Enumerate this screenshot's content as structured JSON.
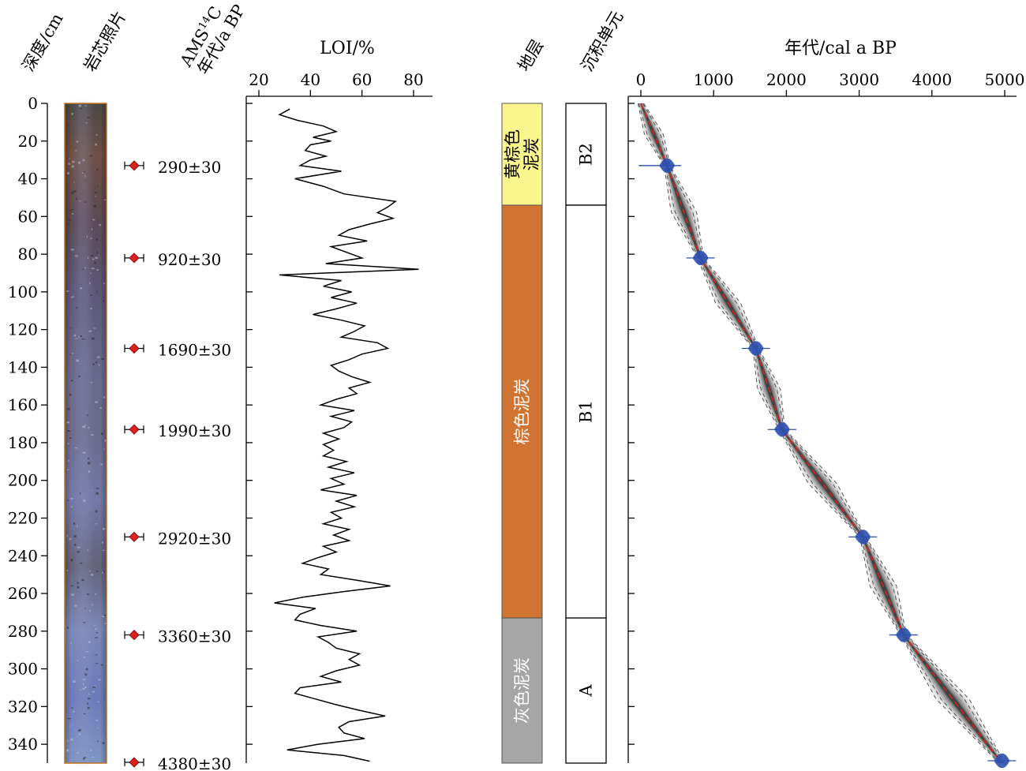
{
  "chart_data": {
    "type": "stratigraphic-column",
    "depth_axis": {
      "label": "深度/cm",
      "range": [
        0,
        350
      ],
      "ticks": [
        0,
        20,
        40,
        60,
        80,
        100,
        120,
        140,
        160,
        180,
        200,
        220,
        240,
        260,
        280,
        300,
        320,
        340
      ]
    },
    "core_photo": {
      "label": "岩芯照片"
    },
    "ams_dates": {
      "label": "AMS ¹⁴C\n年代/a BP",
      "label_line1": "AMS",
      "label_sup": "14",
      "label_line1_end": "C",
      "label_line2": "年代/a BP",
      "points": [
        {
          "depth": 33,
          "label": "290±30"
        },
        {
          "depth": 82,
          "label": "920±30"
        },
        {
          "depth": 130,
          "label": "1690±30"
        },
        {
          "depth": 173,
          "label": "1990±30"
        },
        {
          "depth": 230,
          "label": "2920±30"
        },
        {
          "depth": 282,
          "label": "3360±30"
        },
        {
          "depth": 350,
          "label": "4380±30"
        }
      ],
      "marker_color": "#e02020"
    },
    "loi": {
      "type": "line",
      "label": "LOI/%",
      "xlim": [
        20,
        80
      ],
      "ticks": [
        20,
        40,
        60,
        80
      ],
      "depth": [
        3,
        6,
        9,
        12,
        15,
        18,
        20,
        22,
        25,
        28,
        30,
        33,
        36,
        40,
        44,
        48,
        52,
        55,
        58,
        61,
        64,
        67,
        70,
        73,
        76,
        79,
        82,
        85,
        88,
        91,
        94,
        97,
        100,
        103,
        106,
        109,
        112,
        115,
        118,
        121,
        124,
        127,
        130,
        133,
        136,
        139,
        142,
        145,
        148,
        151,
        154,
        157,
        160,
        163,
        166,
        169,
        172,
        175,
        178,
        181,
        184,
        187,
        190,
        193,
        196,
        199,
        202,
        205,
        208,
        211,
        214,
        217,
        220,
        223,
        226,
        229,
        232,
        235,
        238,
        241,
        244,
        247,
        250,
        253,
        256,
        259,
        262,
        265,
        268,
        271,
        274,
        277,
        280,
        283,
        286,
        289,
        292,
        295,
        298,
        301,
        304,
        307,
        310,
        313,
        316,
        319,
        322,
        325,
        328,
        331,
        334,
        337,
        340,
        343,
        346,
        349
      ],
      "values": [
        32,
        28,
        35,
        45,
        50,
        41,
        48,
        40,
        38,
        46,
        40,
        36,
        52,
        34,
        45,
        53,
        73,
        70,
        66,
        72,
        63,
        55,
        51,
        62,
        48,
        54,
        60,
        46,
        82,
        28,
        52,
        45,
        56,
        48,
        58,
        50,
        41,
        52,
        61,
        57,
        52,
        66,
        70,
        60,
        55,
        48,
        51,
        56,
        63,
        55,
        58,
        50,
        44,
        57,
        48,
        56,
        53,
        45,
        51,
        45,
        49,
        45,
        54,
        47,
        57,
        48,
        53,
        44,
        58,
        50,
        57,
        48,
        52,
        45,
        55,
        49,
        55,
        45,
        50,
        43,
        37,
        47,
        44,
        58,
        71,
        53,
        37,
        26,
        42,
        36,
        34,
        44,
        58,
        43,
        47,
        50,
        59,
        55,
        59,
        50,
        44,
        52,
        36,
        34,
        42,
        50,
        59,
        69,
        55,
        51,
        53,
        61,
        43,
        31,
        53,
        63
      ]
    },
    "strata": {
      "label": "地层",
      "layers": [
        {
          "name": "黄棕色泥炭",
          "lines": [
            "黄棕色",
            "泥炭"
          ],
          "top": 0,
          "bottom": 54,
          "color": "#fbf58e"
        },
        {
          "name": "棕色泥炭",
          "lines": [
            "棕色泥炭"
          ],
          "top": 54,
          "bottom": 273,
          "color": "#d17431"
        },
        {
          "name": "灰色泥炭",
          "lines": [
            "灰色泥炭"
          ],
          "top": 273,
          "bottom": 350,
          "color": "#a6a6a6"
        }
      ]
    },
    "units": {
      "label": "沉积单元",
      "layers": [
        {
          "name": "B2",
          "top": 0,
          "bottom": 54
        },
        {
          "name": "B1",
          "top": 54,
          "bottom": 273
        },
        {
          "name": "A",
          "top": 273,
          "bottom": 350
        }
      ]
    },
    "age_model": {
      "type": "line",
      "label": "年代/cal a BP",
      "xlim": [
        0,
        5000
      ],
      "ticks": [
        0,
        1000,
        2000,
        3000,
        4000,
        5000
      ],
      "depth": [
        0,
        33,
        82,
        130,
        173,
        230,
        282,
        350
      ],
      "age": [
        0,
        360,
        820,
        1580,
        1940,
        3050,
        3610,
        4960
      ],
      "median_color": "#e02020",
      "date_color": "#2b4fb0"
    }
  }
}
